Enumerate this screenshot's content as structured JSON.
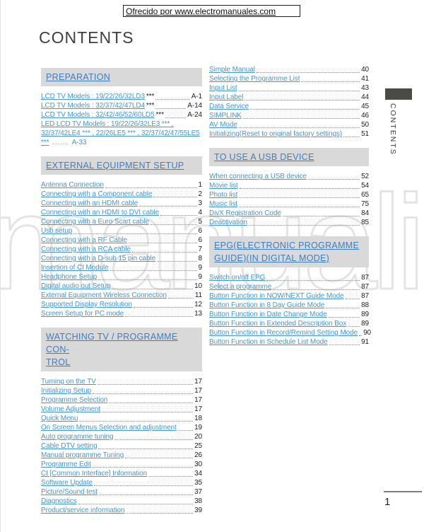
{
  "banner": {
    "text": "Ofrecido por www.electromanuales.com"
  },
  "page_title": "CONTENTS",
  "side_tab": {
    "label": "CONTENTS"
  },
  "watermark_text": "manuali",
  "footer": {
    "page_number": "1"
  },
  "colors": {
    "link_blue": "#4696d2",
    "header_blue": "#3b7ec2",
    "section_bar_gray": "#d9d9d9",
    "tab_dark": "#4b4a47",
    "watermark_gray": "#e4e4e4"
  },
  "columns": {
    "left": [
      {
        "title": "PREPARATION",
        "entries": [
          {
            "label": "LCD TV Models : 19/22/26/32LD3",
            "suffix": "***",
            "page": "A-1"
          },
          {
            "label": "LCD TV Models : 32/37/42/47LD4",
            "suffix": "***",
            "page": "A-14"
          },
          {
            "label": "LCD TV Models : 32/42/46/52/60LD5",
            "suffix": "***",
            "page": "A-24"
          },
          {
            "label": "LED LCD TV Models : 19/22/26/32LE3 *** , 32/37/42LE4 *** , 22/26LE5 *** , 32/37/42/47/55LE5 ***",
            "page": "A-33",
            "wrap": true,
            "blue_page": true
          }
        ]
      },
      {
        "title": "EXTERNAL EQUIPMENT SETUP",
        "entries": [
          {
            "label": "Antenna Connection",
            "page": "1"
          },
          {
            "label": "Connecting with a Component cable",
            "page": "2"
          },
          {
            "label": "Connecting with an HDMI cable",
            "page": "3"
          },
          {
            "label": "Connecting with an HDMI to DVI cable",
            "page": "4"
          },
          {
            "label": "Connecting with a Euro Scart cable",
            "page": "5"
          },
          {
            "label": "Usb setup",
            "page": "6"
          },
          {
            "label": "Connecting with a RF Cable",
            "page": "6"
          },
          {
            "label": "Connecting with a RCA cable",
            "page": "7"
          },
          {
            "label": "Connecting with a D-sub 15 pin cable",
            "page": "8"
          },
          {
            "label": "Insertion of CI Module",
            "page": "9"
          },
          {
            "label": "Headphone Setup",
            "page": "9"
          },
          {
            "label": "Digital audio out Setup",
            "page": "10"
          },
          {
            "label": "External Equipment Wireless Connection",
            "page": "11"
          },
          {
            "label": "Supported Display Resolution",
            "page": "12"
          },
          {
            "label": "Screen Setup for PC mode",
            "page": "13"
          }
        ]
      },
      {
        "title": "WATCHING TV / PROGRAMME CON-\nTROL",
        "entries": [
          {
            "label": "Turning on the TV",
            "page": "17"
          },
          {
            "label": "Initializing Setup",
            "page": "17"
          },
          {
            "label": "Programme Selection",
            "page": "17"
          },
          {
            "label": "Volume Adjustment",
            "page": "17"
          },
          {
            "label": "Quick Menu",
            "page": "18"
          },
          {
            "label": "On Screen Menus Selection and adjustment",
            "page": "19"
          },
          {
            "label": "Auto programme tuning",
            "page": "20"
          },
          {
            "label": "Cable DTV setting",
            "page": "25"
          },
          {
            "label": "Manual programme Tuning",
            "page": "26"
          },
          {
            "label": "Programme Edit",
            "page": "30"
          },
          {
            "label": "CI [Common Interface] Information",
            "page": "34"
          },
          {
            "label": "Software Update",
            "page": "35"
          },
          {
            "label": "Picture/Sound test",
            "page": "37"
          },
          {
            "label": "Diagnostics",
            "page": "38"
          },
          {
            "label": "Product/service information",
            "page": "39"
          }
        ]
      }
    ],
    "right": [
      {
        "title": null,
        "entries": [
          {
            "label": "Simple Manual",
            "page": "40"
          },
          {
            "label": "Selecting the Programme List",
            "page": "41"
          },
          {
            "label": "Input List",
            "page": "43"
          },
          {
            "label": "Input Label",
            "page": "44"
          },
          {
            "label": "Data Service",
            "page": "45"
          },
          {
            "label": "SIMPLINK",
            "page": "46"
          },
          {
            "label": "AV Mode",
            "page": "50"
          },
          {
            "label": "Initializing(Reset to original factory settings)",
            "page": "51"
          }
        ]
      },
      {
        "title": "TO USE A USB DEVICE",
        "entries": [
          {
            "label": "When connecting a USB device",
            "page": "52"
          },
          {
            "label": "Movie list",
            "page": "54"
          },
          {
            "label": "Photo list",
            "page": "65"
          },
          {
            "label": "Music list",
            "page": "75"
          },
          {
            "label": "DivX Registration Code",
            "page": "84"
          },
          {
            "label": "Deactivation",
            "page": "85"
          }
        ]
      },
      {
        "title": "EPG(ELECTRONIC PROGRAMME\nGUIDE)(IN DIGITAL MODE)",
        "entries": [
          {
            "label": "Switch on/off EPG",
            "page": "87"
          },
          {
            "label": "Select a programme",
            "page": "87"
          },
          {
            "label": "Button Function in NOW/NEXT Guide Mode",
            "page": "87"
          },
          {
            "label": "Button Function in 8 Day Guide Mode",
            "page": "88"
          },
          {
            "label": "Button Function in Date Change Mode",
            "page": "89"
          },
          {
            "label": "Button Function in Extended Description Box",
            "page": "89"
          },
          {
            "label": "Button Function in Record/Remind Setting Mode",
            "page": "90"
          },
          {
            "label": "Button Function in Schedule List Mode",
            "page": "91"
          }
        ]
      }
    ]
  }
}
